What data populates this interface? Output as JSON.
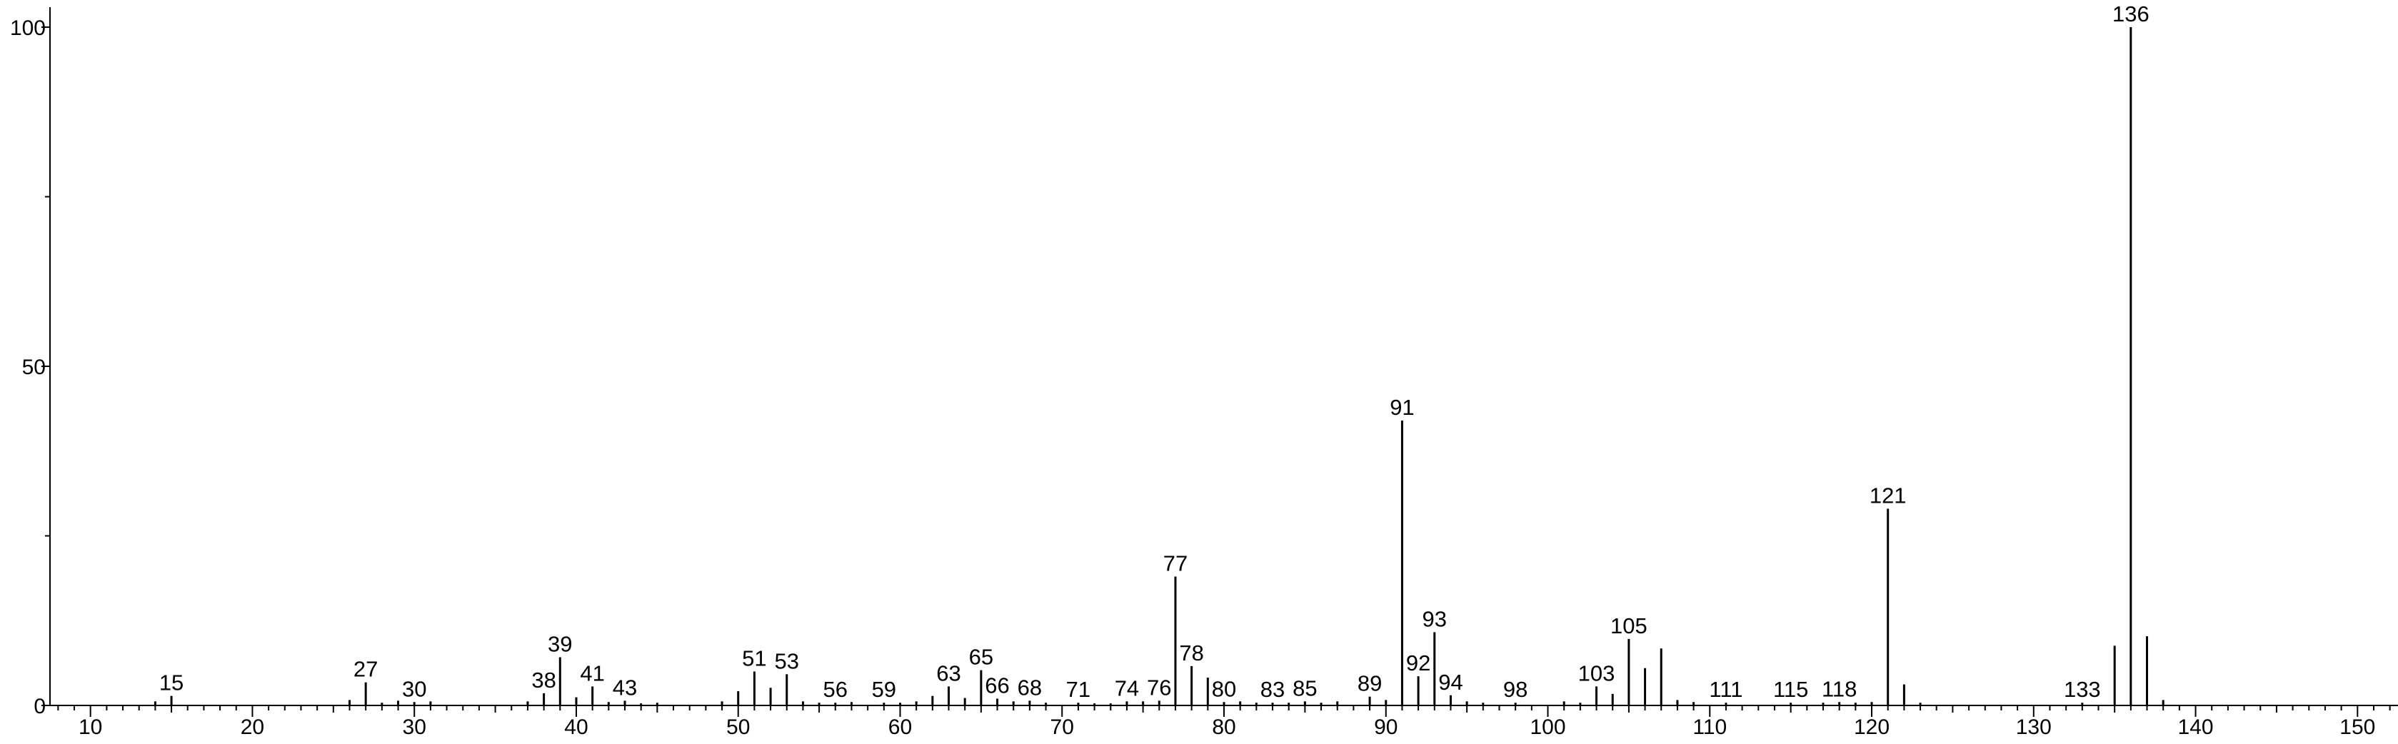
{
  "chart_data": {
    "type": "bar",
    "title": "",
    "xlabel": "",
    "ylabel": "",
    "xlim": [
      7.5,
      152.5
    ],
    "ylim": [
      0,
      100
    ],
    "grid": false,
    "x_ticks": [
      10,
      20,
      30,
      40,
      50,
      60,
      70,
      80,
      90,
      100,
      110,
      120,
      130,
      140,
      150
    ],
    "y_ticks": [
      0,
      50,
      100
    ],
    "peaks": [
      {
        "x": 14,
        "y": 0.6
      },
      {
        "x": 15,
        "y": 1.4,
        "label": "15"
      },
      {
        "x": 26,
        "y": 0.8
      },
      {
        "x": 27,
        "y": 3.4,
        "label": "27"
      },
      {
        "x": 28,
        "y": 0.4
      },
      {
        "x": 29,
        "y": 0.7
      },
      {
        "x": 30,
        "y": 0.5,
        "label": "30"
      },
      {
        "x": 31,
        "y": 0.6
      },
      {
        "x": 37,
        "y": 0.6
      },
      {
        "x": 38,
        "y": 1.8,
        "label": "38"
      },
      {
        "x": 39,
        "y": 7.1,
        "label": "39"
      },
      {
        "x": 40,
        "y": 1.2
      },
      {
        "x": 41,
        "y": 2.8,
        "label": "41"
      },
      {
        "x": 42,
        "y": 0.5
      },
      {
        "x": 43,
        "y": 0.7,
        "label": "43"
      },
      {
        "x": 44,
        "y": 0.3
      },
      {
        "x": 45,
        "y": 0.4
      },
      {
        "x": 49,
        "y": 0.6
      },
      {
        "x": 50,
        "y": 2.1
      },
      {
        "x": 51,
        "y": 5.0,
        "label": "51"
      },
      {
        "x": 52,
        "y": 2.6
      },
      {
        "x": 53,
        "y": 4.6,
        "label": "53"
      },
      {
        "x": 54,
        "y": 0.6
      },
      {
        "x": 55,
        "y": 0.4
      },
      {
        "x": 56,
        "y": 0.4,
        "label": "56"
      },
      {
        "x": 57,
        "y": 0.5
      },
      {
        "x": 59,
        "y": 0.4,
        "label": "59"
      },
      {
        "x": 60,
        "y": 0.4
      },
      {
        "x": 61,
        "y": 0.6
      },
      {
        "x": 62,
        "y": 1.4
      },
      {
        "x": 63,
        "y": 2.8,
        "label": "63"
      },
      {
        "x": 64,
        "y": 1.1
      },
      {
        "x": 65,
        "y": 5.2,
        "label": "65"
      },
      {
        "x": 66,
        "y": 1.0,
        "label": "66"
      },
      {
        "x": 67,
        "y": 0.6
      },
      {
        "x": 68,
        "y": 0.7,
        "label": "68"
      },
      {
        "x": 69,
        "y": 0.4
      },
      {
        "x": 71,
        "y": 0.4,
        "label": "71"
      },
      {
        "x": 72,
        "y": 0.3
      },
      {
        "x": 73,
        "y": 0.3
      },
      {
        "x": 74,
        "y": 0.6,
        "label": "74"
      },
      {
        "x": 75,
        "y": 0.6
      },
      {
        "x": 76,
        "y": 0.7,
        "label": "76"
      },
      {
        "x": 77,
        "y": 19.0,
        "label": "77"
      },
      {
        "x": 78,
        "y": 5.8,
        "label": "78"
      },
      {
        "x": 79,
        "y": 4.1
      },
      {
        "x": 80,
        "y": 0.5,
        "label": "80"
      },
      {
        "x": 81,
        "y": 0.6
      },
      {
        "x": 82,
        "y": 0.4
      },
      {
        "x": 83,
        "y": 0.4,
        "label": "83"
      },
      {
        "x": 84,
        "y": 0.4
      },
      {
        "x": 85,
        "y": 0.6,
        "label": "85"
      },
      {
        "x": 86,
        "y": 0.4
      },
      {
        "x": 87,
        "y": 0.6
      },
      {
        "x": 89,
        "y": 1.3,
        "label": "89"
      },
      {
        "x": 90,
        "y": 0.8
      },
      {
        "x": 91,
        "y": 42.0,
        "label": "91"
      },
      {
        "x": 92,
        "y": 4.3,
        "label": "92"
      },
      {
        "x": 93,
        "y": 10.8,
        "label": "93"
      },
      {
        "x": 94,
        "y": 1.5,
        "label": "94"
      },
      {
        "x": 95,
        "y": 0.6
      },
      {
        "x": 96,
        "y": 0.4
      },
      {
        "x": 98,
        "y": 0.4,
        "label": "98"
      },
      {
        "x": 101,
        "y": 0.6
      },
      {
        "x": 102,
        "y": 0.4
      },
      {
        "x": 103,
        "y": 2.8,
        "label": "103"
      },
      {
        "x": 104,
        "y": 1.7
      },
      {
        "x": 105,
        "y": 9.8,
        "label": "105"
      },
      {
        "x": 106,
        "y": 5.5
      },
      {
        "x": 107,
        "y": 8.4
      },
      {
        "x": 108,
        "y": 0.8
      },
      {
        "x": 109,
        "y": 0.5
      },
      {
        "x": 111,
        "y": 0.4,
        "label": "111"
      },
      {
        "x": 115,
        "y": 0.4,
        "label": "115"
      },
      {
        "x": 117,
        "y": 0.4
      },
      {
        "x": 118,
        "y": 0.5,
        "label": "118"
      },
      {
        "x": 119,
        "y": 0.4
      },
      {
        "x": 120,
        "y": 0.5
      },
      {
        "x": 121,
        "y": 29.0,
        "label": "121"
      },
      {
        "x": 122,
        "y": 3.1
      },
      {
        "x": 123,
        "y": 0.4
      },
      {
        "x": 133,
        "y": 0.4,
        "label": "133"
      },
      {
        "x": 135,
        "y": 8.8
      },
      {
        "x": 136,
        "y": 100.0,
        "label": "136"
      },
      {
        "x": 137,
        "y": 10.2
      },
      {
        "x": 138,
        "y": 0.8
      }
    ]
  }
}
